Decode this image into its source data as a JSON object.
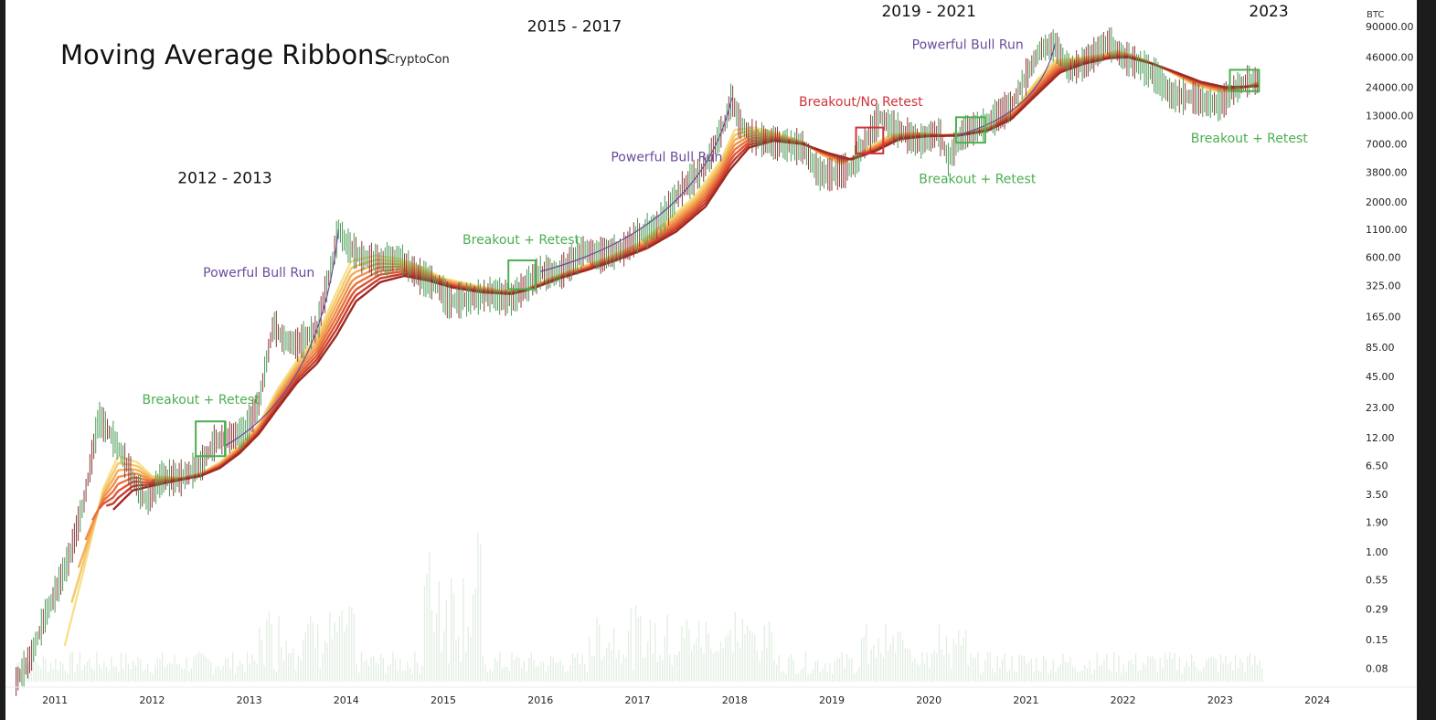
{
  "chart_data": {
    "type": "line",
    "title": "Moving Average Ribbons",
    "subtitle": "CryptoCon",
    "y_unit": "BTC",
    "yscale": "log",
    "ylim": [
      0.06,
      150000
    ],
    "xlim": [
      2010.5,
      2024.3
    ],
    "y_ticks": [
      "90000.00",
      "46000.00",
      "24000.00",
      "13000.00",
      "7000.00",
      "3800.00",
      "2000.00",
      "1100.00",
      "600.00",
      "325.00",
      "165.00",
      "85.00",
      "45.00",
      "23.00",
      "12.00",
      "6.50",
      "3.50",
      "1.90",
      "1.00",
      "0.55",
      "0.29",
      "0.15",
      "0.08"
    ],
    "x_ticks": [
      "2011",
      "2012",
      "2013",
      "2014",
      "2015",
      "2016",
      "2017",
      "2018",
      "2019",
      "2020",
      "2021",
      "2022",
      "2023",
      "2024"
    ],
    "price": [
      [
        2010.6,
        0.06
      ],
      [
        2010.75,
        0.1
      ],
      [
        2010.9,
        0.25
      ],
      [
        2011.0,
        0.4
      ],
      [
        2011.15,
        0.9
      ],
      [
        2011.3,
        3
      ],
      [
        2011.45,
        18
      ],
      [
        2011.55,
        14
      ],
      [
        2011.7,
        8
      ],
      [
        2011.85,
        4
      ],
      [
        2011.95,
        3
      ],
      [
        2012.1,
        5
      ],
      [
        2012.3,
        5
      ],
      [
        2012.5,
        6.5
      ],
      [
        2012.65,
        11
      ],
      [
        2012.8,
        12
      ],
      [
        2012.95,
        13.5
      ],
      [
        2013.1,
        25
      ],
      [
        2013.25,
        140
      ],
      [
        2013.35,
        100
      ],
      [
        2013.5,
        90
      ],
      [
        2013.7,
        130
      ],
      [
        2013.85,
        500
      ],
      [
        2013.92,
        1100
      ],
      [
        2014.0,
        800
      ],
      [
        2014.15,
        600
      ],
      [
        2014.35,
        550
      ],
      [
        2014.55,
        590
      ],
      [
        2014.75,
        400
      ],
      [
        2014.95,
        320
      ],
      [
        2015.05,
        230
      ],
      [
        2015.25,
        240
      ],
      [
        2015.5,
        270
      ],
      [
        2015.7,
        240
      ],
      [
        2015.85,
        320
      ],
      [
        2016.0,
        430
      ],
      [
        2016.2,
        420
      ],
      [
        2016.45,
        700
      ],
      [
        2016.6,
        620
      ],
      [
        2016.85,
        700
      ],
      [
        2017.0,
        950
      ],
      [
        2017.2,
        1200
      ],
      [
        2017.45,
        2600
      ],
      [
        2017.7,
        4300
      ],
      [
        2017.9,
        11000
      ],
      [
        2017.97,
        19000
      ],
      [
        2018.05,
        11000
      ],
      [
        2018.2,
        8000
      ],
      [
        2018.45,
        7000
      ],
      [
        2018.7,
        6500
      ],
      [
        2018.87,
        3700
      ],
      [
        2019.0,
        3600
      ],
      [
        2019.2,
        4100
      ],
      [
        2019.35,
        7500
      ],
      [
        2019.5,
        12500
      ],
      [
        2019.65,
        9800
      ],
      [
        2019.9,
        7300
      ],
      [
        2020.1,
        9000
      ],
      [
        2020.2,
        5000
      ],
      [
        2020.35,
        8800
      ],
      [
        2020.6,
        11000
      ],
      [
        2020.85,
        16000
      ],
      [
        2021.0,
        30000
      ],
      [
        2021.15,
        55000
      ],
      [
        2021.3,
        60000
      ],
      [
        2021.45,
        35000
      ],
      [
        2021.6,
        40000
      ],
      [
        2021.85,
        64000
      ],
      [
        2022.0,
        46000
      ],
      [
        2022.15,
        40000
      ],
      [
        2022.35,
        30000
      ],
      [
        2022.5,
        20000
      ],
      [
        2022.7,
        19500
      ],
      [
        2022.85,
        17000
      ],
      [
        2023.0,
        16500
      ],
      [
        2023.15,
        23000
      ],
      [
        2023.3,
        28000
      ],
      [
        2023.4,
        27000
      ]
    ],
    "ribbon_ma_fast": [
      [
        2011.1,
        0.13
      ],
      [
        2011.3,
        0.7
      ],
      [
        2011.5,
        4
      ],
      [
        2011.65,
        8
      ],
      [
        2011.85,
        7
      ],
      [
        2012.0,
        5.2
      ],
      [
        2012.3,
        5
      ],
      [
        2012.5,
        5.5
      ],
      [
        2012.7,
        7
      ],
      [
        2012.9,
        10
      ],
      [
        2013.1,
        16
      ],
      [
        2013.3,
        35
      ],
      [
        2013.5,
        65
      ],
      [
        2013.7,
        110
      ],
      [
        2013.9,
        280
      ],
      [
        2014.05,
        550
      ],
      [
        2014.3,
        620
      ],
      [
        2014.55,
        580
      ],
      [
        2014.8,
        470
      ],
      [
        2015.0,
        380
      ],
      [
        2015.3,
        330
      ],
      [
        2015.6,
        290
      ],
      [
        2015.85,
        300
      ],
      [
        2016.1,
        380
      ],
      [
        2016.4,
        480
      ],
      [
        2016.7,
        600
      ],
      [
        2017.0,
        800
      ],
      [
        2017.3,
        1300
      ],
      [
        2017.6,
        2300
      ],
      [
        2017.85,
        4800
      ],
      [
        2018.0,
        9500
      ],
      [
        2018.2,
        10000
      ],
      [
        2018.45,
        8800
      ],
      [
        2018.7,
        7300
      ],
      [
        2018.9,
        5500
      ],
      [
        2019.1,
        4500
      ],
      [
        2019.35,
        6200
      ],
      [
        2019.6,
        8500
      ],
      [
        2019.85,
        9000
      ],
      [
        2020.15,
        8500
      ],
      [
        2020.4,
        8800
      ],
      [
        2020.65,
        10500
      ],
      [
        2020.9,
        15500
      ],
      [
        2021.1,
        27000
      ],
      [
        2021.3,
        43000
      ],
      [
        2021.5,
        45000
      ],
      [
        2021.75,
        48000
      ],
      [
        2021.95,
        53000
      ],
      [
        2022.2,
        44000
      ],
      [
        2022.45,
        35000
      ],
      [
        2022.7,
        26000
      ],
      [
        2022.95,
        22000
      ],
      [
        2023.15,
        22000
      ],
      [
        2023.4,
        27000
      ]
    ],
    "ribbon_ma_slow": [
      [
        2011.6,
        2.5
      ],
      [
        2011.8,
        3.8
      ],
      [
        2012.0,
        4.2
      ],
      [
        2012.3,
        4.8
      ],
      [
        2012.5,
        5.2
      ],
      [
        2012.7,
        6.2
      ],
      [
        2012.9,
        8.5
      ],
      [
        2013.1,
        13
      ],
      [
        2013.3,
        23
      ],
      [
        2013.5,
        40
      ],
      [
        2013.7,
        60
      ],
      [
        2013.9,
        110
      ],
      [
        2014.1,
        230
      ],
      [
        2014.35,
        350
      ],
      [
        2014.6,
        400
      ],
      [
        2014.85,
        360
      ],
      [
        2015.1,
        310
      ],
      [
        2015.4,
        280
      ],
      [
        2015.7,
        270
      ],
      [
        2015.9,
        300
      ],
      [
        2016.2,
        380
      ],
      [
        2016.5,
        460
      ],
      [
        2016.8,
        570
      ],
      [
        2017.1,
        730
      ],
      [
        2017.4,
        1050
      ],
      [
        2017.7,
        1800
      ],
      [
        2017.95,
        4000
      ],
      [
        2018.15,
        6500
      ],
      [
        2018.4,
        7500
      ],
      [
        2018.7,
        7000
      ],
      [
        2018.95,
        5800
      ],
      [
        2019.2,
        5000
      ],
      [
        2019.45,
        6000
      ],
      [
        2019.7,
        7800
      ],
      [
        2020.0,
        8300
      ],
      [
        2020.3,
        8400
      ],
      [
        2020.6,
        9300
      ],
      [
        2020.85,
        12000
      ],
      [
        2021.1,
        20000
      ],
      [
        2021.35,
        33000
      ],
      [
        2021.6,
        40000
      ],
      [
        2021.85,
        45000
      ],
      [
        2022.05,
        46000
      ],
      [
        2022.3,
        40000
      ],
      [
        2022.55,
        33000
      ],
      [
        2022.8,
        27000
      ],
      [
        2023.05,
        24000
      ],
      [
        2023.4,
        24500
      ]
    ],
    "annotations": [
      {
        "text": "2012 - 2013",
        "x": 2012.75,
        "y": 3000,
        "style": "period"
      },
      {
        "text": "2015 - 2017",
        "x": 2016.35,
        "y": 80000,
        "style": "period"
      },
      {
        "text": "2019 - 2021",
        "x": 2020.0,
        "y": 1500000,
        "style": "period"
      },
      {
        "text": "2023",
        "x": 2023.5,
        "y": 1700000,
        "style": "period"
      },
      {
        "text": "Powerful Bull Run",
        "x": 2013.1,
        "y": 390,
        "style": "purple"
      },
      {
        "text": "Powerful Bull Run",
        "x": 2017.3,
        "y": 4800,
        "style": "purple"
      },
      {
        "text": "Powerful Bull Run",
        "x": 2020.4,
        "y": 55000,
        "style": "purple"
      },
      {
        "text": "Breakout + Retest",
        "x": 2012.5,
        "y": 25,
        "style": "green"
      },
      {
        "text": "Breakout + Retest",
        "x": 2015.8,
        "y": 800,
        "style": "green"
      },
      {
        "text": "Breakout + Retest",
        "x": 2020.5,
        "y": 3000,
        "style": "green"
      },
      {
        "text": "Breakout + Retest",
        "x": 2023.3,
        "y": 7200,
        "style": "green"
      },
      {
        "text": "Breakout/No Retest",
        "x": 2019.3,
        "y": 16000,
        "style": "red"
      }
    ],
    "boxes": [
      {
        "x0": 2012.45,
        "x1": 2012.75,
        "y0": 8,
        "y1": 17,
        "color": "#4caf50"
      },
      {
        "x0": 2015.67,
        "x1": 2015.95,
        "y0": 300,
        "y1": 560,
        "color": "#4caf50"
      },
      {
        "x0": 2019.25,
        "x1": 2019.53,
        "y0": 5700,
        "y1": 10000,
        "color": "#d0343c"
      },
      {
        "x0": 2020.28,
        "x1": 2020.58,
        "y0": 7200,
        "y1": 12500,
        "color": "#4caf50"
      },
      {
        "x0": 2023.1,
        "x1": 2023.4,
        "y0": 22000,
        "y1": 35000,
        "color": "#4caf50"
      }
    ]
  }
}
